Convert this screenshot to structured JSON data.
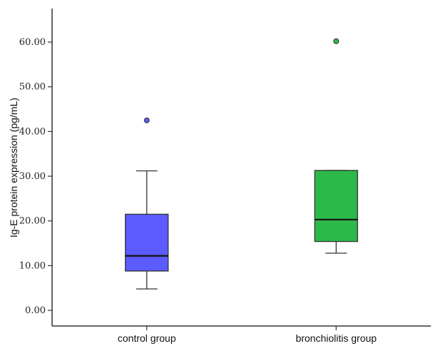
{
  "chart_data": {
    "type": "boxplot",
    "ylabel": "Ig-E protein expression (pg/mL)",
    "ylim": [
      -3.5,
      67.5
    ],
    "yticks": [
      "0.00",
      "10.00",
      "20.00",
      "30.00",
      "40.00",
      "50.00",
      "60.00"
    ],
    "ytick_values": [
      0,
      10,
      20,
      30,
      40,
      50,
      60
    ],
    "grid": false,
    "categories": [
      "control group",
      "bronchiolitis group"
    ],
    "boxes": [
      {
        "category": "control group",
        "min": 4.8,
        "q1": 8.8,
        "median": 12.2,
        "q3": 21.5,
        "max": 31.2,
        "outliers": [
          42.5
        ],
        "color": "#5b5bff"
      },
      {
        "category": "bronchiolitis group",
        "min": 12.8,
        "q1": 15.4,
        "median": 20.3,
        "q3": 31.3,
        "max": 31.3,
        "outliers": [
          60.2
        ],
        "color": "#2db84a"
      }
    ]
  }
}
